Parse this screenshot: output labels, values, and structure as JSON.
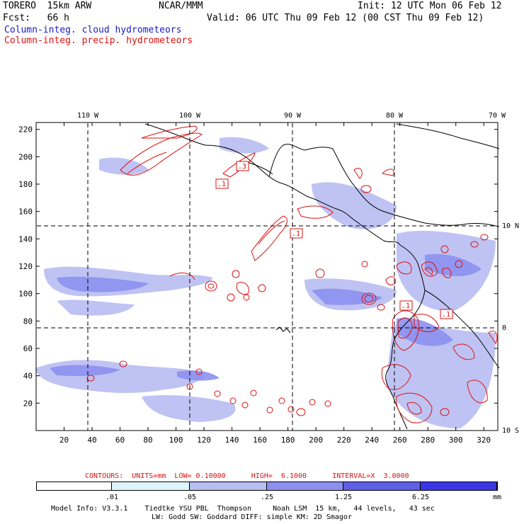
{
  "header": {
    "model": "TORERO  15km ARW",
    "center": "NCAR/MMM",
    "init": "Init: 12 UTC Mon 06 Feb 12",
    "fcst": "Fcst:   66 h",
    "valid": "Valid: 06 UTC Thu 09 Feb 12 (00 CST Thu 09 Feb 12)",
    "field1": "Column-integ. cloud hydrometeors",
    "field2": "Column-integ. precip. hydrometeors"
  },
  "map": {
    "lon_labels": [
      "110 W",
      "100 W",
      "90 W",
      "80 W",
      "70 W"
    ],
    "lat_labels": [
      "10 N",
      "0",
      "10 S"
    ],
    "x_ticks": [
      "20",
      "40",
      "60",
      "80",
      "100",
      "120",
      "140",
      "160",
      "180",
      "200",
      "220",
      "240",
      "260",
      "280",
      "300",
      "320"
    ],
    "y_ticks": [
      "220",
      "200",
      "180",
      "160",
      "140",
      "120",
      "100",
      "80",
      "60",
      "40",
      "20"
    ],
    "x_range": [
      0,
      330
    ],
    "y_range": [
      0,
      225
    ],
    "box_labels": [
      ".1",
      ".3",
      ".1",
      ".1",
      ".1"
    ]
  },
  "contour_info": {
    "text": "CONTOURS:  UNITS=mm  LOW= 0.10000      HIGH=  6.1000      INTERVAL=X  3.0000"
  },
  "legend": {
    "labels": [
      ".01",
      ".05",
      ".25",
      "1.25",
      "6.25"
    ],
    "units": "mm",
    "colors": [
      "#ffffff",
      "#dff5fb",
      "#b8bdf2",
      "#8c91ef",
      "#5f5fe6",
      "#3a36e8",
      "#1a10f0"
    ]
  },
  "footer": {
    "line1": "Model Info: V3.3.1    Tiedtke YSU PBL  Thompson     Noah LSM  15 km,   44 levels,   43 sec",
    "line2": "LW: Godd SW: Goddard DIFF: simple KM: 2D Smagor"
  },
  "colors": {
    "cloud": "#1a1acc",
    "precip": "#dd1111"
  }
}
